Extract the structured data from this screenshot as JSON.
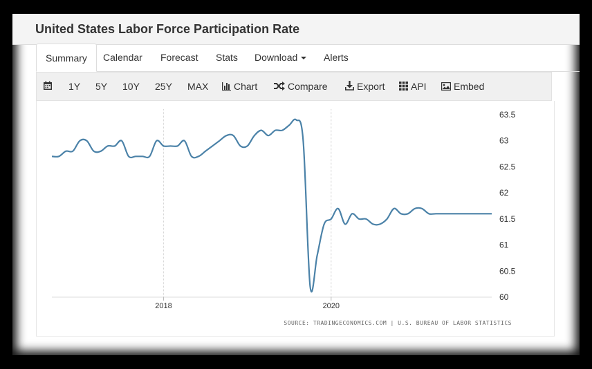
{
  "page": {
    "title": "United States Labor Force Participation Rate"
  },
  "tabs": [
    {
      "label": "Summary",
      "active": true
    },
    {
      "label": "Calendar"
    },
    {
      "label": "Forecast"
    },
    {
      "label": "Stats"
    },
    {
      "label": "Download",
      "dropdown": true
    },
    {
      "label": "Alerts"
    }
  ],
  "toolbar": {
    "calendar_icon": "calendar-icon",
    "ranges": [
      "1Y",
      "5Y",
      "10Y",
      "25Y",
      "MAX"
    ],
    "chart_label": "Chart",
    "compare_label": "Compare",
    "export_label": "Export",
    "api_label": "API",
    "embed_label": "Embed"
  },
  "chart_data": {
    "type": "line",
    "title": "",
    "xlabel": "",
    "ylabel": "",
    "x_tick_labels": [
      "2018",
      "2020"
    ],
    "y_tick_labels": [
      "63.5",
      "63",
      "62.5",
      "62",
      "61.5",
      "61",
      "60.5",
      "60"
    ],
    "ylim": [
      60,
      63.5
    ],
    "grid": "vertical lines at year ticks",
    "line_color": "#4b82a8",
    "series": [
      {
        "x": [
          "2016-09",
          "2016-10",
          "2016-11",
          "2016-12",
          "2017-01",
          "2017-02",
          "2017-03",
          "2017-04",
          "2017-05",
          "2017-06",
          "2017-07",
          "2017-08",
          "2017-09",
          "2017-10",
          "2017-11",
          "2017-12",
          "2018-01",
          "2018-02",
          "2018-03",
          "2018-04",
          "2018-05",
          "2018-06",
          "2018-07",
          "2018-08",
          "2018-09",
          "2018-10",
          "2018-11",
          "2018-12",
          "2019-01",
          "2019-02",
          "2019-03",
          "2019-04",
          "2019-05",
          "2019-06",
          "2019-07",
          "2019-08",
          "2019-09",
          "2019-10",
          "2019-11",
          "2019-12",
          "2020-01",
          "2020-02",
          "2020-03",
          "2020-04",
          "2020-05",
          "2020-06",
          "2020-07",
          "2020-08",
          "2020-09",
          "2020-10",
          "2020-11",
          "2020-12",
          "2021-01",
          "2021-02",
          "2021-03",
          "2021-04",
          "2021-05",
          "2021-06",
          "2021-07",
          "2021-08",
          "2021-09",
          "2021-10",
          "2021-11",
          "2021-12"
        ],
        "values": [
          62.7,
          62.7,
          62.8,
          62.8,
          63.0,
          63.0,
          62.8,
          62.8,
          62.9,
          62.9,
          63.0,
          62.7,
          62.7,
          62.7,
          62.7,
          63.0,
          62.9,
          62.9,
          62.9,
          63.0,
          62.7,
          62.7,
          62.8,
          62.9,
          63.0,
          63.1,
          63.1,
          62.9,
          62.9,
          63.1,
          63.2,
          63.1,
          63.2,
          63.2,
          63.3,
          63.4,
          63.0,
          60.2,
          60.8,
          61.4,
          61.5,
          61.7,
          61.4,
          61.6,
          61.5,
          61.5,
          61.4,
          61.4,
          61.5,
          61.7,
          61.6,
          61.6,
          61.7,
          61.7,
          61.6,
          61.6,
          61.6,
          61.6,
          61.6,
          61.6,
          61.6,
          61.6,
          61.6,
          61.6
        ]
      }
    ]
  },
  "source_text": "SOURCE: TRADINGECONOMICS.COM | U.S. BUREAU OF LABOR STATISTICS"
}
